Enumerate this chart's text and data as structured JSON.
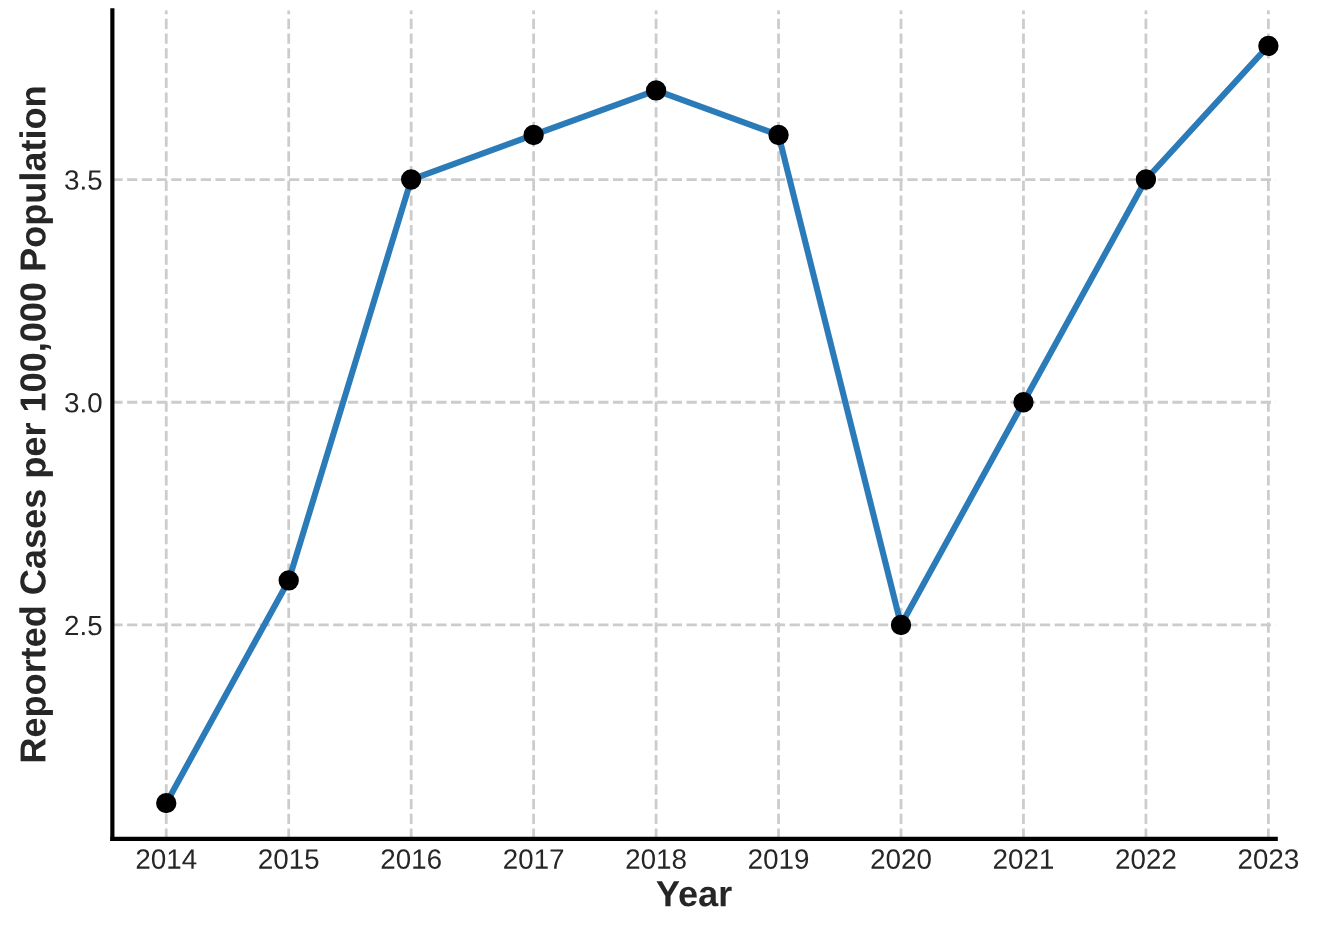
{
  "chart_data": {
    "type": "line",
    "xlabel": "Year",
    "ylabel": "Reported Cases per 100,000 Population",
    "x": [
      2014,
      2015,
      2016,
      2017,
      2018,
      2019,
      2020,
      2021,
      2022,
      2023
    ],
    "series": [
      {
        "color": "#2b7bb9",
        "values": [
          2.1,
          2.6,
          3.5,
          3.6,
          3.7,
          3.6,
          2.5,
          3.0,
          3.5,
          3.8
        ]
      }
    ],
    "xlim": [
      2013.56,
      2023.06
    ],
    "xticks": [
      2014,
      2015,
      2016,
      2017,
      2018,
      2019,
      2020,
      2021,
      2022,
      2023
    ],
    "ylim": [
      2.02,
      3.88
    ],
    "yticks": [
      {
        "value": 2.5,
        "label": "2.5"
      },
      {
        "value": 3.0,
        "label": "3.0"
      },
      {
        "value": 3.5,
        "label": "3.5"
      }
    ],
    "grid": true,
    "marker": "circle",
    "line_style": "solid"
  }
}
